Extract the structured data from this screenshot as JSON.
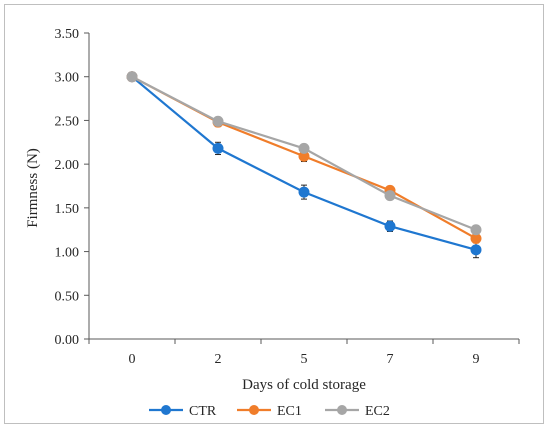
{
  "chart_data": {
    "type": "line",
    "categories": [
      "0",
      "2",
      "5",
      "7",
      "9"
    ],
    "xlabel": "Days of cold storage",
    "ylabel": "Firmness (N)",
    "ylim": [
      0,
      3.5
    ],
    "yticks": [
      "0.00",
      "0.50",
      "1.00",
      "1.50",
      "2.00",
      "2.50",
      "3.00",
      "3.50"
    ],
    "grid": false,
    "legend_position": "bottom",
    "series": [
      {
        "name": "CTR",
        "color": "#1f77d0",
        "values": [
          3.0,
          2.18,
          1.68,
          1.29,
          1.02
        ],
        "errors": [
          0.04,
          0.07,
          0.08,
          0.06,
          0.09
        ]
      },
      {
        "name": "EC1",
        "color": "#f07d2a",
        "values": [
          3.0,
          2.48,
          2.09,
          1.7,
          1.15
        ],
        "errors": [
          0.03,
          0.05,
          0.06,
          0.04,
          0.05
        ]
      },
      {
        "name": "EC2",
        "color": "#a6a6a6",
        "values": [
          3.0,
          2.49,
          2.18,
          1.64,
          1.25
        ],
        "errors": [
          0.03,
          0.04,
          0.04,
          0.04,
          0.04
        ]
      }
    ]
  }
}
